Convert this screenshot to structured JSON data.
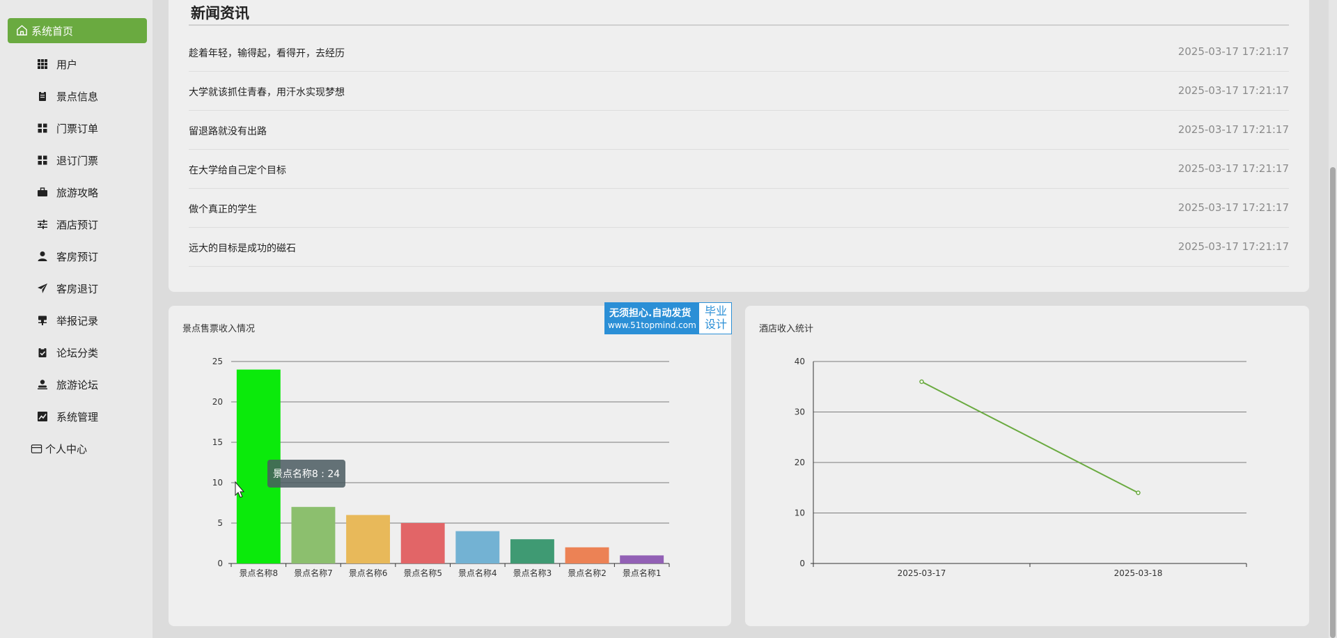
{
  "sidebar": {
    "home_label": "系统首页",
    "items": [
      {
        "label": "用户",
        "icon": "grid-icon"
      },
      {
        "label": "景点信息",
        "icon": "clipboard-icon"
      },
      {
        "label": "门票订单",
        "icon": "apps-icon"
      },
      {
        "label": "退订门票",
        "icon": "apps-icon"
      },
      {
        "label": "旅游攻略",
        "icon": "briefcase-icon"
      },
      {
        "label": "酒店预订",
        "icon": "sliders-icon"
      },
      {
        "label": "客房预订",
        "icon": "user-icon"
      },
      {
        "label": "客房退订",
        "icon": "send-icon"
      },
      {
        "label": "举报记录",
        "icon": "stamp-icon"
      },
      {
        "label": "论坛分类",
        "icon": "clipboard-check-icon"
      },
      {
        "label": "旅游论坛",
        "icon": "person-icon"
      },
      {
        "label": "系统管理",
        "icon": "chart-icon"
      }
    ],
    "personal_label": "个人中心",
    "accent": "#6aaa40"
  },
  "news": {
    "title": "新闻资讯",
    "items": [
      {
        "title": "趁着年轻，输得起，看得开，去经历",
        "time": "2025-03-17 17:21:17"
      },
      {
        "title": "大学就该抓住青春，用汗水实现梦想",
        "time": "2025-03-17 17:21:17"
      },
      {
        "title": "留退路就没有出路",
        "time": "2025-03-17 17:21:17"
      },
      {
        "title": "在大学给自己定个目标",
        "time": "2025-03-17 17:21:17"
      },
      {
        "title": "做个真正的学生",
        "time": "2025-03-17 17:21:17"
      },
      {
        "title": "远大的目标是成功的磁石",
        "time": "2025-03-17 17:21:17"
      }
    ]
  },
  "badge": {
    "line1": "无须担心.自动发货",
    "line2": "www.51topmind.com",
    "right1": "毕业",
    "right2": "设计"
  },
  "chart_data": [
    {
      "type": "bar",
      "title": "景点售票收入情况",
      "categories": [
        "景点名称8",
        "景点名称7",
        "景点名称6",
        "景点名称5",
        "景点名称4",
        "景点名称3",
        "景点名称2",
        "景点名称1"
      ],
      "values": [
        24,
        7,
        6,
        5,
        4,
        3,
        2,
        1
      ],
      "colors": [
        "#0bea0b",
        "#8cbf6e",
        "#e8b95a",
        "#e26567",
        "#73b2d3",
        "#3f9a73",
        "#ec8255",
        "#9260b5"
      ],
      "ylim": [
        0,
        25
      ],
      "yticks": [
        0,
        5,
        10,
        15,
        20,
        25
      ],
      "grid": true,
      "tooltip": "景点名称8 : 24"
    },
    {
      "type": "line",
      "title": "酒店收入统计",
      "x": [
        "2025-03-17",
        "2025-03-18"
      ],
      "values": [
        36,
        14
      ],
      "color": "#6aaa40",
      "ylim": [
        0,
        40
      ],
      "yticks": [
        0,
        10,
        20,
        30,
        40
      ],
      "grid": true
    }
  ]
}
